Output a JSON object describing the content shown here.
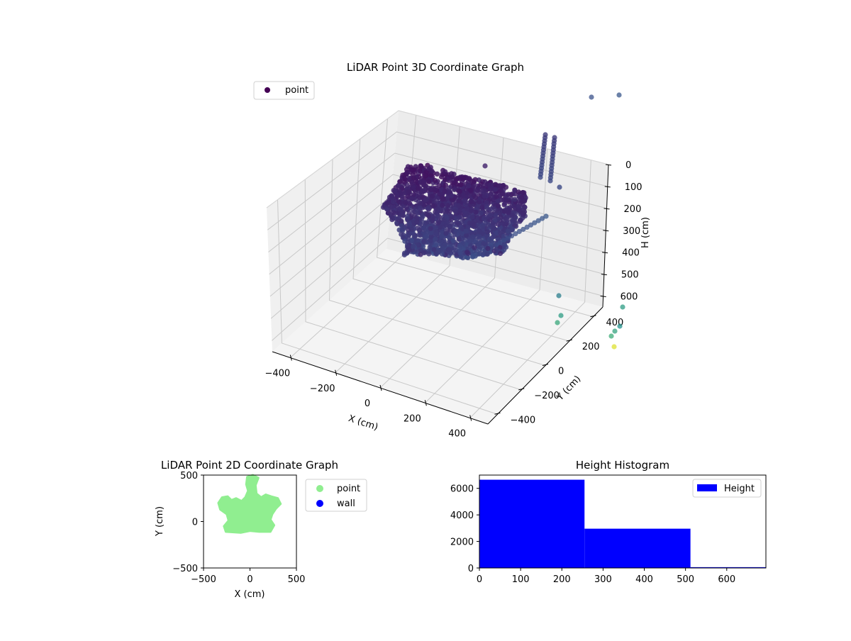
{
  "charts": {
    "scatter3d": {
      "title": "LiDAR Point 3D Coordinate Graph",
      "xlabel": "X (cm)",
      "ylabel": "Y (cm)",
      "zlabel": "H (cm)",
      "legend": "point",
      "xticks": [
        "−400",
        "−200",
        "0",
        "200",
        "400"
      ],
      "yticks": [
        "−400",
        "−200",
        "0",
        "200",
        "400"
      ],
      "zticks": [
        "0",
        "100",
        "200",
        "300",
        "400",
        "500",
        "600"
      ]
    },
    "scatter2d": {
      "title": "LiDAR Point 2D Coordinate Graph",
      "xlabel": "X (cm)",
      "ylabel": "Y (cm)",
      "xticks": [
        "−500",
        "0",
        "500"
      ],
      "yticks": [
        "−500",
        "0",
        "500"
      ],
      "legend": [
        "point",
        "wall"
      ]
    },
    "histogram": {
      "title": "Height Histogram",
      "legend": "Height",
      "xticks": [
        "0",
        "100",
        "200",
        "300",
        "400",
        "500",
        "600"
      ],
      "yticks": [
        "0",
        "2000",
        "4000",
        "6000"
      ]
    }
  },
  "colors": {
    "point2d": "#90ee90",
    "wall": "#0000ff",
    "hist": "#0000ff",
    "viridis_low": "#440154",
    "viridis_mid": "#3b528b",
    "viridis_teal": "#21918c",
    "viridis_high": "#fde725"
  },
  "chart_data": [
    {
      "type": "scatter",
      "title": "LiDAR Point 3D Coordinate Graph",
      "xlabel": "X (cm)",
      "ylabel": "Y (cm)",
      "zlabel": "H (cm)",
      "xlim": [
        -480,
        480
      ],
      "ylim": [
        -480,
        480
      ],
      "zlim": [
        650,
        0
      ],
      "legend_position": "top-left",
      "colormap": "viridis",
      "series": [
        {
          "name": "point",
          "description_points": [
            {
              "x": -250,
              "y": 150,
              "z": 60
            },
            {
              "x": -150,
              "y": 200,
              "z": 40
            },
            {
              "x": 0,
              "y": 100,
              "z": 80
            },
            {
              "x": 100,
              "y": 0,
              "z": 120
            },
            {
              "x": -50,
              "y": -100,
              "z": 180
            },
            {
              "x": 150,
              "y": 250,
              "z": 100
            },
            {
              "x": 300,
              "y": 150,
              "z": 350
            },
            {
              "x": 350,
              "y": 200,
              "z": 600
            }
          ]
        }
      ]
    },
    {
      "type": "scatter",
      "title": "LiDAR Point 2D Coordinate Graph",
      "xlabel": "X (cm)",
      "ylabel": "Y (cm)",
      "xlim": [
        -500,
        500
      ],
      "ylim": [
        -500,
        500
      ],
      "legend_position": "outside-right",
      "series": [
        {
          "name": "point",
          "outline": [
            [
              -300,
              260
            ],
            [
              -240,
              270
            ],
            [
              -200,
              230
            ],
            [
              -150,
              250
            ],
            [
              -90,
              220
            ],
            [
              -50,
              260
            ],
            [
              -20,
              330
            ],
            [
              -40,
              400
            ],
            [
              -30,
              480
            ],
            [
              30,
              500
            ],
            [
              90,
              470
            ],
            [
              60,
              390
            ],
            [
              70,
              300
            ],
            [
              120,
              260
            ],
            [
              170,
              290
            ],
            [
              230,
              270
            ],
            [
              300,
              250
            ],
            [
              330,
              190
            ],
            [
              280,
              140
            ],
            [
              240,
              80
            ],
            [
              220,
              20
            ],
            [
              260,
              -40
            ],
            [
              220,
              -110
            ],
            [
              100,
              -110
            ],
            [
              0,
              -100
            ],
            [
              -100,
              -120
            ],
            [
              -260,
              -110
            ],
            [
              -280,
              -50
            ],
            [
              -230,
              10
            ],
            [
              -250,
              80
            ],
            [
              -320,
              130
            ],
            [
              -340,
              200
            ]
          ]
        },
        {
          "name": "wall",
          "points": []
        }
      ]
    },
    {
      "type": "bar",
      "title": "Height Histogram",
      "legend_position": "top-right",
      "xlim": [
        0,
        695
      ],
      "ylim": [
        0,
        7000
      ],
      "series": [
        {
          "name": "Height",
          "bins": [
            [
              0,
              255
            ],
            [
              255,
              512
            ],
            [
              512,
              695
            ]
          ],
          "values": [
            6650,
            2960,
            60
          ]
        }
      ]
    }
  ]
}
